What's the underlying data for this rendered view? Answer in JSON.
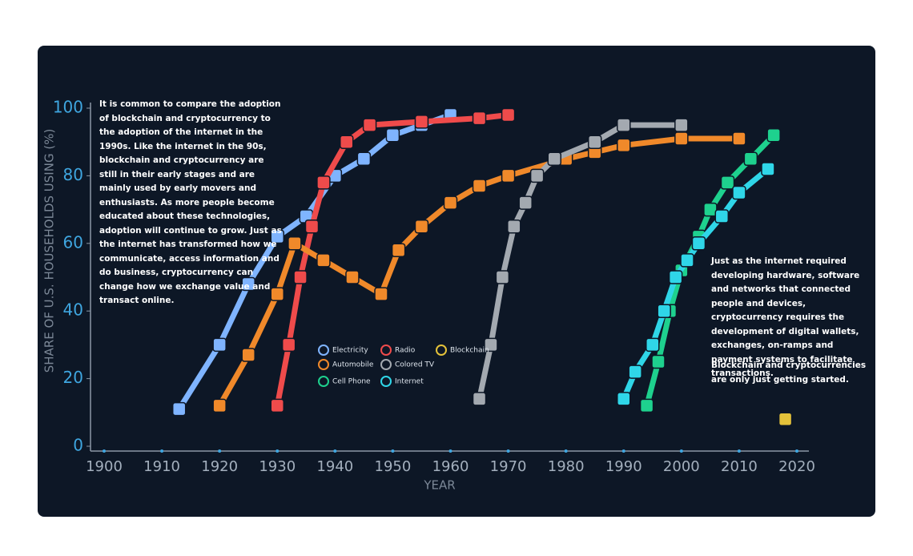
{
  "chart_data": {
    "type": "line",
    "x_label": "YEAR",
    "y_label": "SHARE OF U.S. HOUSEHOLDS USING (%)",
    "xlim": [
      1900,
      2020
    ],
    "ylim": [
      0,
      100
    ],
    "xticks": [
      1900,
      1910,
      1920,
      1930,
      1940,
      1950,
      1960,
      1970,
      1980,
      1990,
      2000,
      2010,
      2020
    ],
    "yticks": [
      0,
      20,
      40,
      60,
      80,
      100
    ],
    "annotations": [
      "It is common to compare the adoption of blockchain and cryptocurrency to the adoption of the internet in the 1990s. Like the internet in the 90s, blockchain and cryptocurrency are still in their early stages and are mainly used by early movers and enthusiasts. As more people become educated about these technologies, adoption will continue to grow. Just as the internet has transformed how we communicate, access information and do business, cryptocurrency can change how we exchange value and transact online.",
      "Just as the internet required developing hardware, software and networks that connected people and devices, cryptocurrency requires the development of digital wallets, exchanges, on-ramps and payment systems to facilitate transactions.",
      "Blockchain and cryptocurrencies are only just getting started."
    ],
    "series": [
      {
        "name": "Electricity",
        "color": "#7fb4ff",
        "x": [
          1913,
          1920,
          1925,
          1930,
          1935,
          1940,
          1945,
          1950,
          1955,
          1960
        ],
        "values": [
          11,
          30,
          48,
          62,
          68,
          80,
          85,
          92,
          95,
          98
        ]
      },
      {
        "name": "Radio",
        "color": "#ef4b4b",
        "x": [
          1930,
          1932,
          1934,
          1936,
          1938,
          1942,
          1946,
          1955,
          1965,
          1970
        ],
        "values": [
          12,
          30,
          50,
          65,
          78,
          90,
          95,
          96,
          97,
          98
        ]
      },
      {
        "name": "Automobile",
        "color": "#f0892a",
        "x": [
          1920,
          1925,
          1930,
          1933,
          1938,
          1943,
          1948,
          1951,
          1955,
          1960,
          1965,
          1970,
          1980,
          1985,
          1990,
          2000,
          2010
        ],
        "values": [
          12,
          27,
          45,
          60,
          55,
          50,
          45,
          58,
          65,
          72,
          77,
          80,
          85,
          87,
          89,
          91,
          91
        ]
      },
      {
        "name": "Colored TV",
        "color": "#a3a9b0",
        "x": [
          1965,
          1967,
          1969,
          1971,
          1973,
          1975,
          1978,
          1985,
          1990,
          2000
        ],
        "values": [
          14,
          30,
          50,
          65,
          72,
          80,
          85,
          90,
          95,
          95
        ]
      },
      {
        "name": "Cell Phone",
        "color": "#1ed18e",
        "x": [
          1994,
          1996,
          1998,
          2000,
          2003,
          2005,
          2008,
          2012,
          2016
        ],
        "values": [
          12,
          25,
          40,
          52,
          62,
          70,
          78,
          85,
          92
        ]
      },
      {
        "name": "Internet",
        "color": "#2fd6e8",
        "x": [
          1990,
          1992,
          1995,
          1997,
          1999,
          2001,
          2003,
          2007,
          2010,
          2015
        ],
        "values": [
          14,
          22,
          30,
          40,
          50,
          55,
          60,
          68,
          75,
          82
        ]
      },
      {
        "name": "Blockchain",
        "color": "#e4c23a",
        "x": [
          2018
        ],
        "values": [
          8
        ]
      }
    ]
  }
}
